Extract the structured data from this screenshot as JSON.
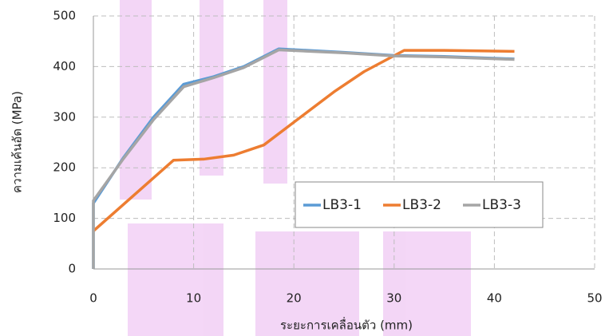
{
  "chart_data": {
    "type": "line",
    "xlabel": "ระยะการเคลื่อนตัว (mm)",
    "ylabel": "ความเค้นอัด (MPa)",
    "xlim": [
      0,
      50
    ],
    "xticks": [
      0,
      10,
      20,
      30,
      40,
      50
    ],
    "ylim": [
      0,
      500
    ],
    "yticks": [
      0,
      100,
      200,
      300,
      400,
      500
    ],
    "grid": true,
    "legend": "center-right",
    "series": [
      {
        "name": "LB3-1",
        "color": "#5b9bd5",
        "x": [
          0,
          0,
          3,
          6,
          9,
          12,
          15,
          18.5,
          25,
          30,
          35,
          42
        ],
        "values": [
          0,
          130,
          220,
          300,
          365,
          380,
          400,
          435,
          428,
          422,
          420,
          415
        ]
      },
      {
        "name": "LB3-2",
        "color": "#ed7d31",
        "x": [
          0,
          4,
          8,
          11,
          14,
          17,
          20,
          24,
          27,
          31,
          35,
          42
        ],
        "values": [
          75,
          145,
          215,
          217,
          225,
          245,
          290,
          350,
          390,
          432,
          432,
          430
        ]
      },
      {
        "name": "LB3-3",
        "color": "#a5a5a5",
        "x": [
          0,
          0,
          3,
          6,
          9,
          12,
          15,
          18.5,
          25,
          30,
          35,
          42
        ],
        "values": [
          0,
          135,
          218,
          295,
          360,
          378,
          398,
          433,
          427,
          421,
          419,
          414
        ]
      }
    ]
  }
}
